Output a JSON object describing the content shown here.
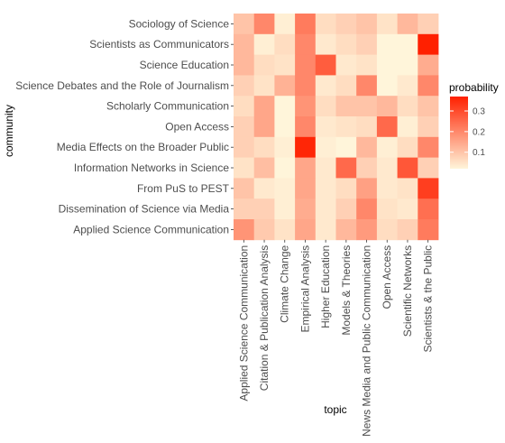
{
  "chart_data": {
    "type": "heatmap",
    "xlabel": "topic",
    "ylabel": "community",
    "x_categories": [
      "Applied Science Communication",
      "Citation & Publication Analysis",
      "Climate Change",
      "Empirical Analysis",
      "Higher Education",
      "Models & Theories",
      "News Media and Public Communication",
      "Open Access",
      "Scientific Networks",
      "Scientists & the Public"
    ],
    "y_categories": [
      "Sociology of Science",
      "Scientists as Communicators",
      "Science Education",
      "Science Debates and the Role of Journalism",
      "Scholarly Communication",
      "Open Access",
      "Media Effects on the Broader Public",
      "Information Networks in Science",
      "From PuS to PEST",
      "Dissemination of Science via Media",
      "Applied Science Communication"
    ],
    "values": [
      [
        0.1,
        0.2,
        0.03,
        0.22,
        0.06,
        0.08,
        0.1,
        0.05,
        0.12,
        0.08
      ],
      [
        0.12,
        0.03,
        0.06,
        0.2,
        0.04,
        0.06,
        0.08,
        0.02,
        0.01,
        0.38
      ],
      [
        0.12,
        0.06,
        0.05,
        0.2,
        0.27,
        0.04,
        0.05,
        0.01,
        0.01,
        0.14
      ],
      [
        0.08,
        0.05,
        0.13,
        0.2,
        0.04,
        0.06,
        0.2,
        0.02,
        0.04,
        0.2
      ],
      [
        0.06,
        0.15,
        0.02,
        0.18,
        0.06,
        0.1,
        0.1,
        0.12,
        0.06,
        0.1
      ],
      [
        0.08,
        0.15,
        0.02,
        0.2,
        0.04,
        0.05,
        0.06,
        0.25,
        0.03,
        0.08
      ],
      [
        0.08,
        0.06,
        0.03,
        0.36,
        0.03,
        0.02,
        0.12,
        0.03,
        0.06,
        0.2
      ],
      [
        0.05,
        0.11,
        0.02,
        0.15,
        0.04,
        0.25,
        0.08,
        0.04,
        0.28,
        0.08
      ],
      [
        0.1,
        0.04,
        0.03,
        0.15,
        0.04,
        0.06,
        0.16,
        0.04,
        0.05,
        0.32
      ],
      [
        0.08,
        0.08,
        0.03,
        0.14,
        0.04,
        0.08,
        0.2,
        0.05,
        0.04,
        0.24
      ],
      [
        0.18,
        0.09,
        0.05,
        0.15,
        0.04,
        0.12,
        0.17,
        0.06,
        0.08,
        0.22
      ]
    ],
    "color_scale": {
      "low": "#fff5da",
      "high": "#ff2000",
      "min": 0.02,
      "max": 0.37
    },
    "legend": {
      "title": "probability",
      "ticks": [
        {
          "value": 0.1,
          "label": "0.1"
        },
        {
          "value": 0.2,
          "label": "0.2"
        },
        {
          "value": 0.3,
          "label": "0.3"
        }
      ],
      "placement": "right"
    },
    "grid": false
  }
}
